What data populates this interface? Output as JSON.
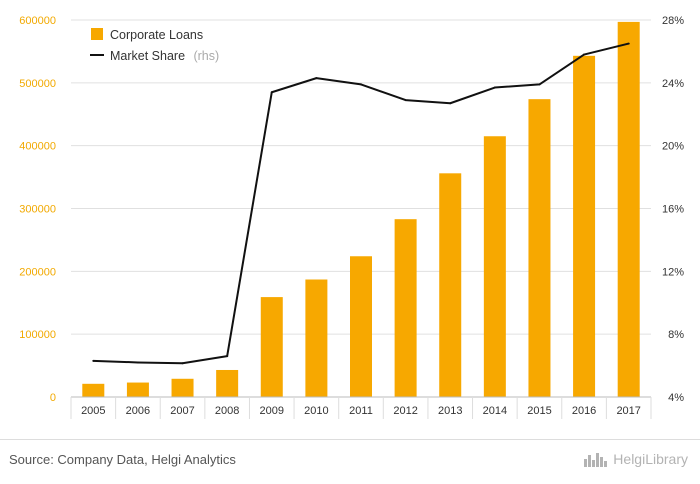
{
  "chart_data": {
    "type": "bar",
    "categories": [
      "2005",
      "2006",
      "2007",
      "2008",
      "2009",
      "2010",
      "2011",
      "2012",
      "2013",
      "2014",
      "2015",
      "2016",
      "2017"
    ],
    "series": [
      {
        "name": "Corporate Loans",
        "type": "bar",
        "axis": "left",
        "values": [
          21000,
          23000,
          29000,
          43000,
          159000,
          187000,
          224000,
          283000,
          356000,
          415000,
          474000,
          543000,
          597000
        ]
      },
      {
        "name": "Market Share",
        "legend_suffix": "(rhs)",
        "type": "line",
        "axis": "right",
        "values": [
          6.3,
          6.2,
          6.15,
          6.6,
          23.4,
          24.3,
          23.9,
          22.9,
          22.7,
          23.7,
          23.9,
          25.8,
          26.5
        ]
      }
    ],
    "y_left": {
      "ticks": [
        "0",
        "100000",
        "200000",
        "300000",
        "400000",
        "500000",
        "600000"
      ],
      "min": 0,
      "max": 600000
    },
    "y_right": {
      "ticks": [
        "4%",
        "8%",
        "12%",
        "16%",
        "20%",
        "24%",
        "28%"
      ],
      "min": 4,
      "max": 28
    },
    "legend": {
      "position": "top-left"
    },
    "colors": {
      "bar": "#f7a800",
      "line": "#111111",
      "left_tick": "#f2a900",
      "grid": "#e0e0e0"
    }
  },
  "footer": {
    "source": "Source: Company Data, Helgi Analytics",
    "brand": "HelgiLibrary",
    "brand_icon": "city-skyline-icon"
  }
}
